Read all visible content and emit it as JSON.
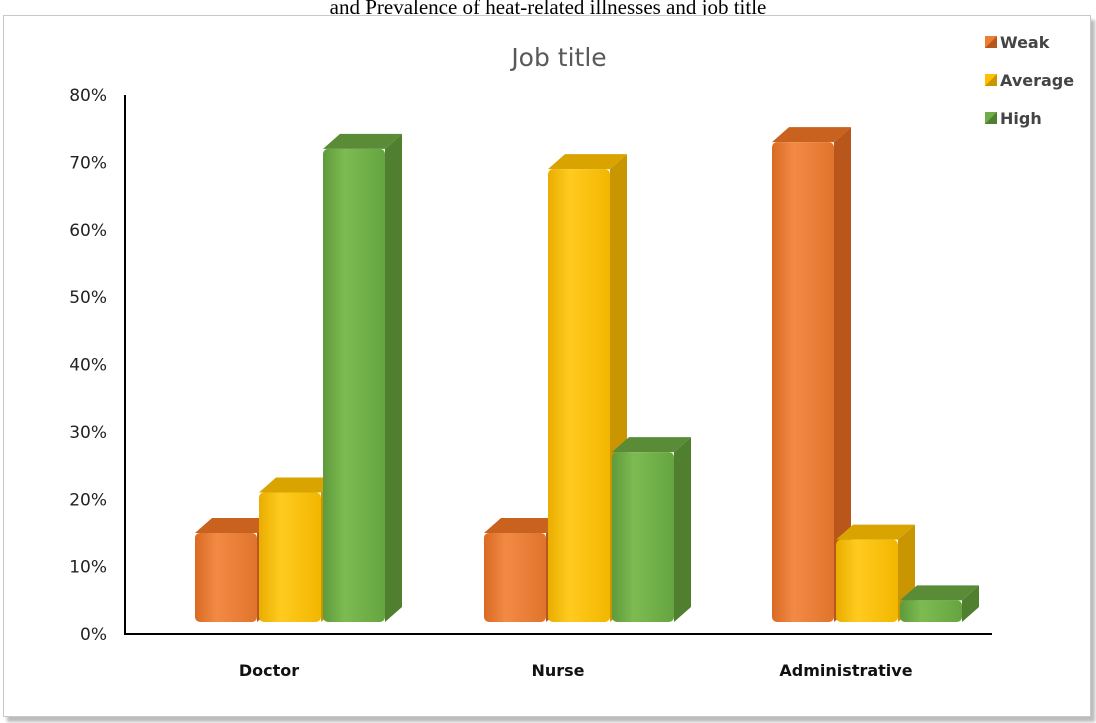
{
  "caption": "and Prevalence of heat-related illnesses and job title",
  "chart_data": {
    "type": "bar",
    "title": "Job title",
    "categories": [
      "Doctor",
      "Nurse",
      "Administrative"
    ],
    "series": [
      {
        "name": "Weak",
        "values": [
          15,
          15,
          73
        ],
        "color": "#ED7D31"
      },
      {
        "name": "Average",
        "values": [
          21,
          69,
          14
        ],
        "color": "#FFC000"
      },
      {
        "name": "High",
        "values": [
          72,
          27,
          5
        ],
        "color": "#70AD47"
      }
    ],
    "ylim": [
      0,
      80
    ],
    "yticks": [
      "0%",
      "10%",
      "20%",
      "30%",
      "40%",
      "50%",
      "60%",
      "70%",
      "80%"
    ],
    "xlabel": "",
    "ylabel": "",
    "legend": "top-right",
    "grid": false
  }
}
